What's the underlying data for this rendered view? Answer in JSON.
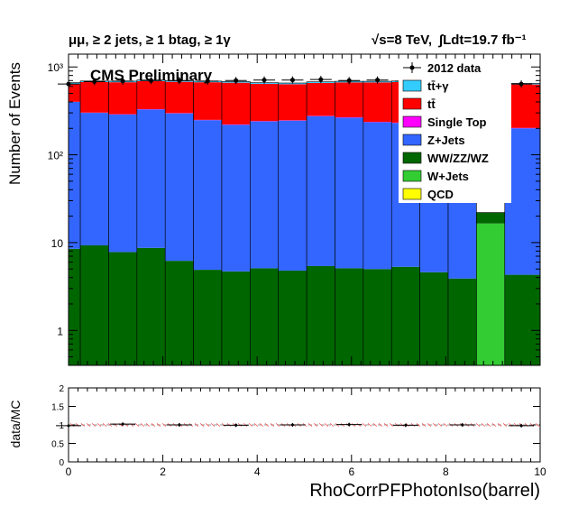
{
  "header": {
    "selection": "μμ, ≥ 2 jets, ≥ 1 btag, ≥ 1γ",
    "energy": "√s=8 TeV,",
    "lumi": "∫Ldt=19.7 fb⁻¹"
  },
  "chart_data": [
    {
      "type": "bar",
      "stacked": true,
      "log_y": true,
      "annotation": "CMS Preliminary",
      "ylabel": "Number of Events",
      "xlim": [
        0,
        10
      ],
      "ylim": [
        0.4,
        1400
      ],
      "y_ticks": [
        {
          "v": 1,
          "label": "1"
        },
        {
          "v": 10,
          "label": "10"
        },
        {
          "v": 100,
          "label": "10²"
        },
        {
          "v": 1000,
          "label": "10³"
        }
      ],
      "bin_edges": [
        -0.25,
        0.25,
        0.85,
        1.45,
        2.05,
        2.65,
        3.25,
        3.85,
        4.45,
        5.05,
        5.65,
        6.25,
        6.85,
        7.45,
        8.05,
        8.65,
        9.25,
        10.0
      ],
      "legend_position": "top-right",
      "legend": [
        {
          "label": "2012 data",
          "kind": "marker"
        },
        {
          "label": "tt̄+γ",
          "color": "#33ccff"
        },
        {
          "label": "tt̄",
          "color": "#ff0000"
        },
        {
          "label": "Single Top",
          "color": "#ff00ff"
        },
        {
          "label": "Z+Jets",
          "color": "#3366ff"
        },
        {
          "label": "WW/ZZ/WZ",
          "color": "#006600"
        },
        {
          "label": "W+Jets",
          "color": "#33cc33"
        },
        {
          "label": "QCD",
          "color": "#ffff00"
        }
      ],
      "series": [
        {
          "name": "QCD",
          "color": "#ffff00",
          "values": [
            0,
            0,
            0,
            0,
            0,
            0,
            0,
            0,
            0,
            0,
            0,
            0,
            0,
            0,
            0,
            0,
            0
          ]
        },
        {
          "name": "W+Jets",
          "color": "#33cc33",
          "values": [
            0,
            0,
            0,
            0,
            0,
            0,
            0,
            0,
            0,
            0,
            0,
            0,
            0,
            0,
            0,
            16.5,
            0
          ]
        },
        {
          "name": "WW/ZZ/WZ",
          "color": "#006600",
          "values": [
            8.5,
            9.3,
            7.8,
            8.7,
            6.2,
            4.9,
            4.7,
            5.1,
            4.8,
            5.4,
            5.1,
            5.0,
            5.3,
            4.6,
            3.9,
            5.5,
            4.3
          ]
        },
        {
          "name": "Z+Jets",
          "color": "#3366ff",
          "values": [
            391,
            291,
            280,
            320,
            290,
            243,
            215,
            235,
            240,
            270,
            260,
            230,
            225,
            215,
            255,
            0,
            196
          ]
        },
        {
          "name": "Single Top",
          "color": "#ff00ff",
          "values": [
            2,
            2,
            2,
            2,
            2,
            2,
            2,
            2,
            2,
            2,
            2,
            2,
            2,
            2,
            2,
            0,
            2
          ]
        },
        {
          "name": "tt̄",
          "color": "#ff0000",
          "values": [
            240,
            370,
            380,
            360,
            380,
            420,
            440,
            400,
            390,
            380,
            400,
            430,
            440,
            440,
            410,
            0,
            430
          ]
        },
        {
          "name": "tt̄+γ",
          "color": "#33ccff",
          "values": [
            22,
            20,
            20,
            20,
            20,
            20,
            20,
            20,
            20,
            20,
            20,
            20,
            20,
            20,
            20,
            0,
            18
          ]
        }
      ],
      "data": {
        "name": "2012 data",
        "x": [
          0.0,
          0.55,
          1.15,
          1.75,
          2.35,
          2.95,
          3.55,
          4.15,
          4.75,
          5.35,
          5.95,
          6.55,
          7.15,
          7.75,
          8.35,
          9.6
        ],
        "y": [
          640,
          680,
          690,
          700,
          700,
          690,
          700,
          710,
          710,
          720,
          700,
          710,
          690,
          700,
          700,
          640
        ]
      }
    },
    {
      "type": "scatter",
      "xlabel": "RhoCorrPFPhotonIso(barrel)",
      "ylabel": "data/MC",
      "xlim": [
        0,
        10
      ],
      "ylim": [
        0,
        2
      ],
      "x_ticks": [
        0,
        2,
        4,
        6,
        8,
        10
      ],
      "y_ticks": [
        0,
        0.5,
        1,
        1.5,
        2
      ],
      "x": [
        0.0,
        1.15,
        2.35,
        3.55,
        4.75,
        5.95,
        7.15,
        8.35,
        9.6
      ],
      "y": [
        0.98,
        1.02,
        1.0,
        0.99,
        1.0,
        1.01,
        0.99,
        1.0,
        0.98
      ]
    }
  ]
}
